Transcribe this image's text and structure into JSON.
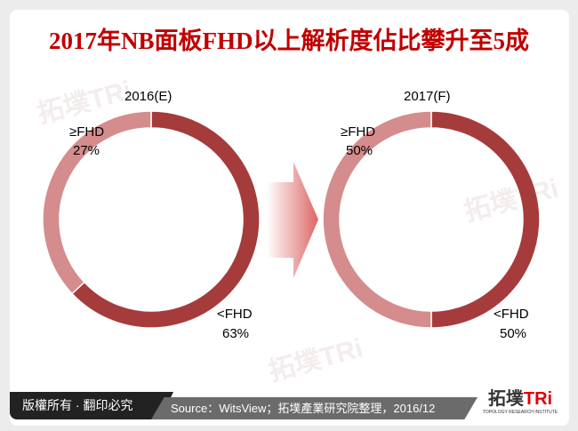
{
  "title": "2017年NB面板FHD以上解析度佔比攀升至5成",
  "chart_data": [
    {
      "type": "pie",
      "subtype": "donut",
      "title": "2016(E)",
      "categories": [
        "<FHD",
        "≥FHD"
      ],
      "values": [
        63,
        27
      ],
      "labels": [
        "63%",
        "27%"
      ],
      "colors": [
        "#a63b3b",
        "#d58c8c"
      ]
    },
    {
      "type": "pie",
      "subtype": "donut",
      "title": "2017(F)",
      "categories": [
        "<FHD",
        "≥FHD"
      ],
      "values": [
        50,
        50
      ],
      "labels": [
        "50%",
        "50%"
      ],
      "colors": [
        "#a63b3b",
        "#d58c8c"
      ]
    }
  ],
  "footer": {
    "copyright": "版權所有 · 翻印必究",
    "source": "Source：WitsView；拓墣產業研究院整理，2016/12"
  },
  "logo": {
    "main": "拓墣",
    "accent": "TRi",
    "sub": "TOPOLOGY RESEARCH INSTITUTE"
  },
  "watermark": "拓墣TRi"
}
